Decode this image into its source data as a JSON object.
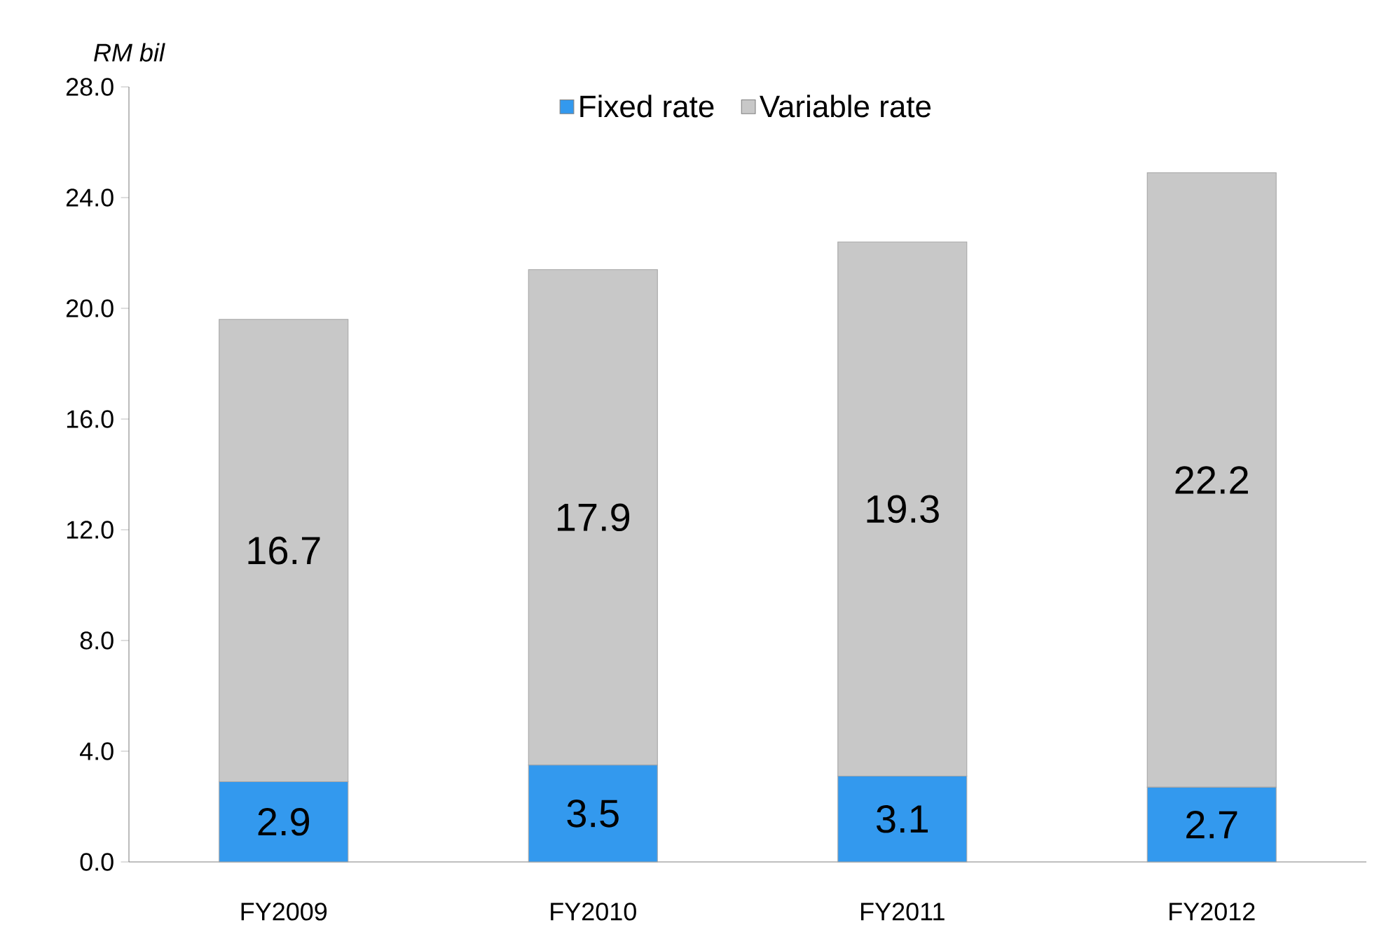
{
  "chart_data": {
    "type": "bar",
    "stacked": true,
    "ylabel": "RM bil",
    "categories": [
      "FY2009",
      "FY2010",
      "FY2011",
      "FY2012"
    ],
    "series": [
      {
        "name": "Fixed rate",
        "color": "#3399ee",
        "values": [
          2.9,
          3.5,
          3.1,
          2.7
        ]
      },
      {
        "name": "Variable rate",
        "color": "#c8c8c8",
        "values": [
          16.7,
          17.9,
          19.3,
          22.2
        ]
      }
    ],
    "ylim": [
      0,
      28
    ],
    "yticks": [
      {
        "value": 0,
        "label": "0.0"
      },
      {
        "value": 4,
        "label": "4.0"
      },
      {
        "value": 8,
        "label": "8.0"
      },
      {
        "value": 12,
        "label": "12.0"
      },
      {
        "value": 16,
        "label": "16.0"
      },
      {
        "value": 20,
        "label": "20.0"
      },
      {
        "value": 24,
        "label": "24.0"
      },
      {
        "value": 28,
        "label": "28.0"
      }
    ],
    "data_labels": true,
    "legend": "top",
    "grid": false
  }
}
